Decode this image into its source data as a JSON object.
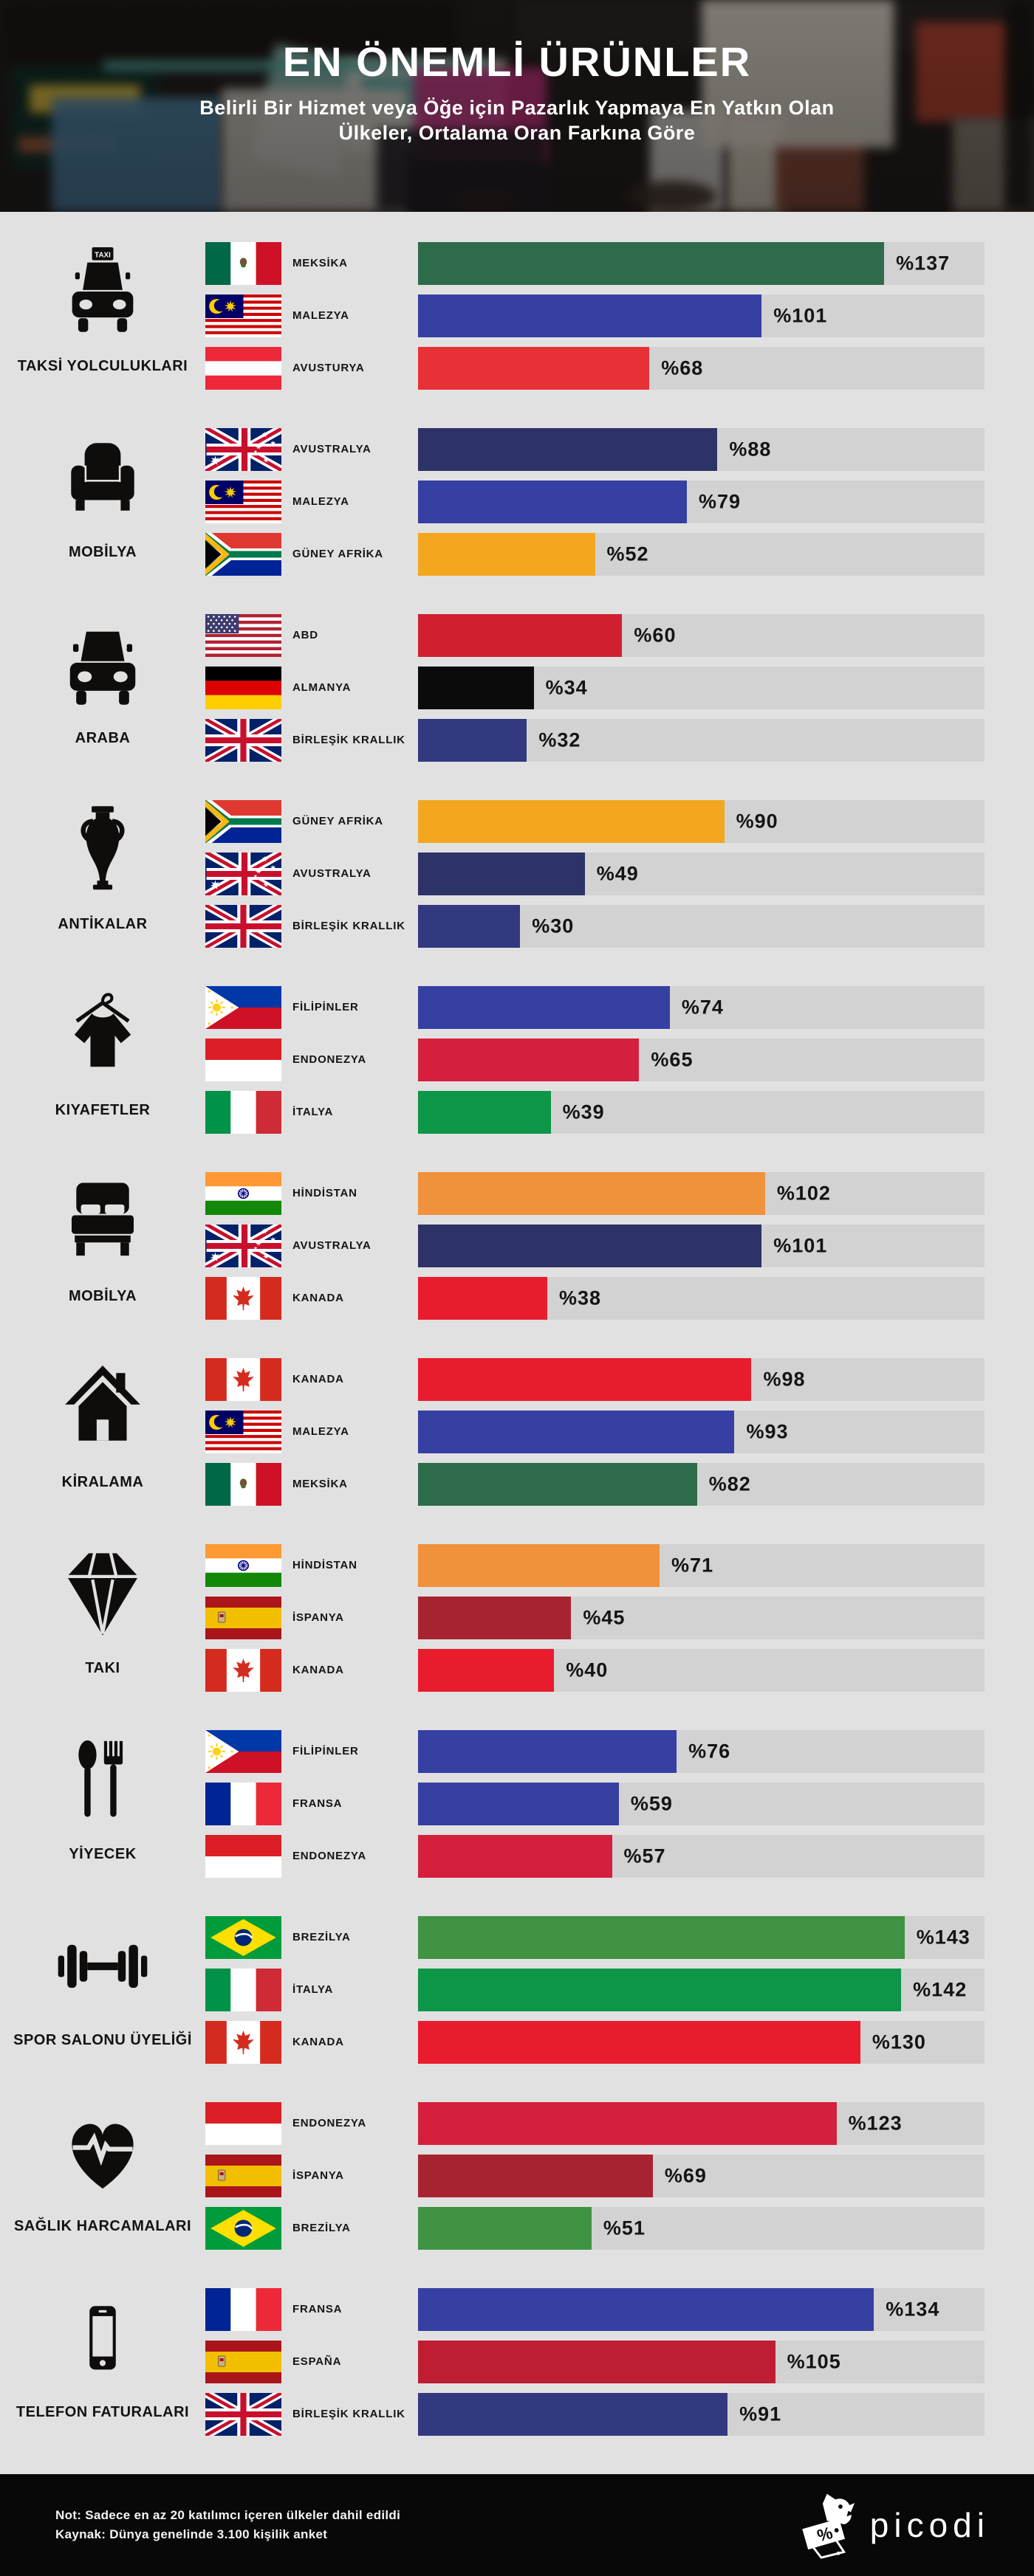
{
  "header": {
    "title": "EN ÖNEMLİ ÜRÜNLER",
    "subtitle_line1": "Belirli Bir Hizmet veya Öğe için Pazarlık Yapmaya En Yatkın Olan",
    "subtitle_line2": "Ülkeler, Ortalama Oran Farkına Göre"
  },
  "chart_data": {
    "type": "bar",
    "value_prefix": "%",
    "scale_max": 166.5,
    "track_color": "#D2D2D2",
    "background_color": "#E2E1E1",
    "sections": [
      {
        "category": "TAKSİ YOLCULUKLARI",
        "icon": "taxi-icon",
        "rows": [
          {
            "country": "MEKSİKA",
            "flag": "mx",
            "value": 137,
            "label": "%137",
            "color": "#2E6B4A"
          },
          {
            "country": "MALEZYA",
            "flag": "my",
            "value": 101,
            "label": "%101",
            "color": "#3540A2"
          },
          {
            "country": "AVUSTURYA",
            "flag": "at",
            "value": 68,
            "label": "%68",
            "color": "#E73136"
          }
        ]
      },
      {
        "category": "MOBİLYA",
        "icon": "armchair-icon",
        "rows": [
          {
            "country": "AVUSTRALYA",
            "flag": "au",
            "value": 88,
            "label": "%88",
            "color": "#2D3267"
          },
          {
            "country": "MALEZYA",
            "flag": "my",
            "value": 79,
            "label": "%79",
            "color": "#3540A2"
          },
          {
            "country": "GÜNEY AFRİKA",
            "flag": "za",
            "value": 52,
            "label": "%52",
            "color": "#F2A71F"
          }
        ]
      },
      {
        "category": "ARABA",
        "icon": "car-icon",
        "rows": [
          {
            "country": "ABD",
            "flag": "us",
            "value": 60,
            "label": "%60",
            "color": "#D02030"
          },
          {
            "country": "ALMANYA",
            "flag": "de",
            "value": 34,
            "label": "%34",
            "color": "#0B0B0B"
          },
          {
            "country": "BİRLEŞİK KRALLIK",
            "flag": "gb",
            "value": 32,
            "label": "%32",
            "color": "#32397F"
          }
        ]
      },
      {
        "category": "ANTİKALAR",
        "icon": "amphora-icon",
        "rows": [
          {
            "country": "GÜNEY AFRİKA",
            "flag": "za",
            "value": 90,
            "label": "%90",
            "color": "#F2A71F"
          },
          {
            "country": "AVUSTRALYA",
            "flag": "au",
            "value": 49,
            "label": "%49",
            "color": "#2D3267"
          },
          {
            "country": "BİRLEŞİK KRALLIK",
            "flag": "gb",
            "value": 30,
            "label": "%30",
            "color": "#32397F"
          }
        ]
      },
      {
        "category": "KIYAFETLER",
        "icon": "clothes-icon",
        "rows": [
          {
            "country": "FİLİPİNLER",
            "flag": "ph",
            "value": 74,
            "label": "%74",
            "color": "#3540A2"
          },
          {
            "country": "ENDONEZYA",
            "flag": "id",
            "value": 65,
            "label": "%65",
            "color": "#D51F3E"
          },
          {
            "country": "İTALYA",
            "flag": "it",
            "value": 39,
            "label": "%39",
            "color": "#0D9648"
          }
        ]
      },
      {
        "category": "MOBİLYA",
        "icon": "bed-icon",
        "rows": [
          {
            "country": "HİNDİSTAN",
            "flag": "in",
            "value": 102,
            "label": "%102",
            "color": "#F0913C"
          },
          {
            "country": "AVUSTRALYA",
            "flag": "au",
            "value": 101,
            "label": "%101",
            "color": "#2D3267"
          },
          {
            "country": "KANADA",
            "flag": "ca",
            "value": 38,
            "label": "%38",
            "color": "#E81C2D"
          }
        ]
      },
      {
        "category": "KİRALAMA",
        "icon": "house-icon",
        "rows": [
          {
            "country": "KANADA",
            "flag": "ca",
            "value": 98,
            "label": "%98",
            "color": "#E81C2D"
          },
          {
            "country": "MALEZYA",
            "flag": "my",
            "value": 93,
            "label": "%93",
            "color": "#3540A2"
          },
          {
            "country": "MEKSİKA",
            "flag": "mx",
            "value": 82,
            "label": "%82",
            "color": "#2E6B4A"
          }
        ]
      },
      {
        "category": "TAKI",
        "icon": "diamond-icon",
        "rows": [
          {
            "country": "HİNDİSTAN",
            "flag": "in",
            "value": 71,
            "label": "%71",
            "color": "#F0913C"
          },
          {
            "country": "İSPANYA",
            "flag": "es",
            "value": 45,
            "label": "%45",
            "color": "#A82331"
          },
          {
            "country": "KANADA",
            "flag": "ca",
            "value": 40,
            "label": "%40",
            "color": "#E81C2D"
          }
        ]
      },
      {
        "category": "YİYECEK",
        "icon": "food-icon",
        "rows": [
          {
            "country": "FİLİPİNLER",
            "flag": "ph",
            "value": 76,
            "label": "%76",
            "color": "#3540A2"
          },
          {
            "country": "FRANSA",
            "flag": "fr",
            "value": 59,
            "label": "%59",
            "color": "#3540A2"
          },
          {
            "country": "ENDONEZYA",
            "flag": "id",
            "value": 57,
            "label": "%57",
            "color": "#D51F3E"
          }
        ]
      },
      {
        "category": "SPOR SALONU ÜYELİĞİ",
        "icon": "dumbbell-icon",
        "rows": [
          {
            "country": "BREZİLYA",
            "flag": "br",
            "value": 143,
            "label": "%143",
            "color": "#3F9342"
          },
          {
            "country": "İTALYA",
            "flag": "it",
            "value": 142,
            "label": "%142",
            "color": "#0D9648"
          },
          {
            "country": "KANADA",
            "flag": "ca",
            "value": 130,
            "label": "%130",
            "color": "#E81C2D"
          }
        ]
      },
      {
        "category": "SAĞLIK HARCAMALARI",
        "icon": "heart-pulse-icon",
        "rows": [
          {
            "country": "ENDONEZYA",
            "flag": "id",
            "value": 123,
            "label": "%123",
            "color": "#D51F3E"
          },
          {
            "country": "İSPANYA",
            "flag": "es",
            "value": 69,
            "label": "%69",
            "color": "#A82331"
          },
          {
            "country": "BREZİLYA",
            "flag": "br",
            "value": 51,
            "label": "%51",
            "color": "#3F9342"
          }
        ]
      },
      {
        "category": "TELEFON FATURALARI",
        "icon": "phone-icon",
        "rows": [
          {
            "country": "FRANSA",
            "flag": "fr",
            "value": 134,
            "label": "%134",
            "color": "#3540A2"
          },
          {
            "country": "ESPAÑA",
            "flag": "es",
            "value": 105,
            "label": "%105",
            "color": "#BF1E32"
          },
          {
            "country": "BİRLEŞİK KRALLIK",
            "flag": "gb",
            "value": 91,
            "label": "%91",
            "color": "#32397F"
          }
        ]
      }
    ]
  },
  "footer": {
    "note": "Not: Sadece en az 20 katılımcı içeren ülkeler dahil edildi",
    "source": "Kaynak: Dünya genelinde 3.100 kişilik anket",
    "logo_text": "picodi"
  }
}
